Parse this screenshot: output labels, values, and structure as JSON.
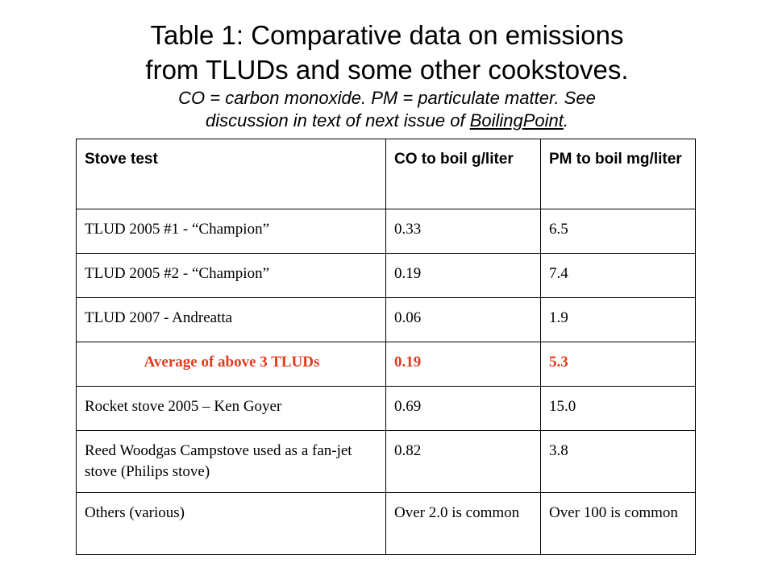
{
  "title": {
    "line1": "Table 1:  Comparative data on emissions",
    "line2": "from TLUDs and some other cookstoves.",
    "sub1": "CO = carbon monoxide.  PM = particulate matter.  See",
    "sub2_pre": "discussion in text of next issue of ",
    "sub2_link": "BoilingPoint",
    "sub2_post": "."
  },
  "table": {
    "headers": [
      "Stove test",
      "CO to boil g/liter",
      "PM to boil mg/liter"
    ],
    "rows": [
      [
        "TLUD 2005 #1 - “Champion”",
        "0.33",
        "6.5"
      ],
      [
        "TLUD 2005 #2 - “Champion”",
        "0.19",
        "7.4"
      ],
      [
        "TLUD 2007 - Andreatta",
        "0.06",
        "1.9"
      ],
      [
        "Average of above 3 TLUDs",
        "0.19",
        "5.3"
      ],
      [
        "Rocket stove 2005 – Ken Goyer",
        "0.69",
        "15.0"
      ],
      [
        "Reed Woodgas Campstove used as a fan-jet stove (Philips stove)",
        "0.82",
        "3.8"
      ],
      [
        "Others (various)",
        "Over 2.0 is common",
        "Over 100 is common"
      ]
    ],
    "highlight_color": "#e03c1c"
  }
}
